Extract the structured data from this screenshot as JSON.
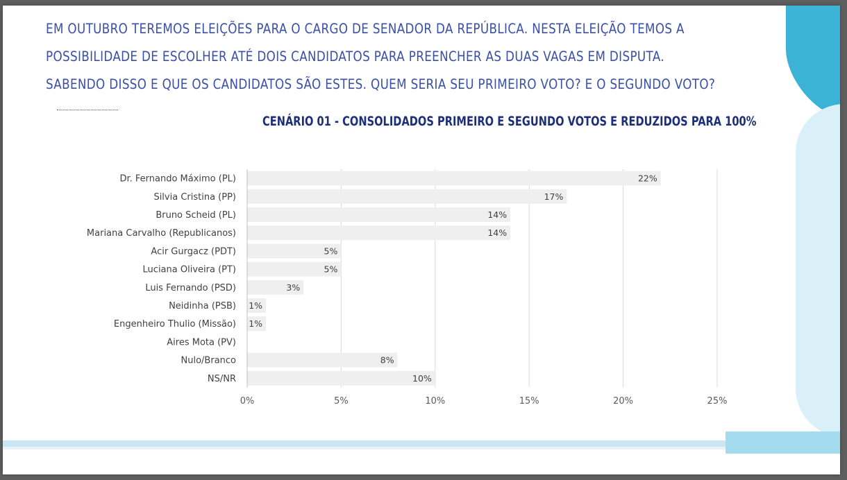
{
  "intro": {
    "line1": "EM OUTUBRO TEREMOS ELEIÇÕES PARA O CARGO DE SENADOR DA REPÚBLICA. NESTA ELEIÇÃO TEMOS A",
    "line2": "POSSIBILIDADE DE ESCOLHER ATÉ DOIS CANDIDATOS PARA PREENCHER AS DUAS VAGAS EM DISPUTA.",
    "line3": "SABENDO DISSO E QUE OS CANDIDATOS SÃO ESTES. QUEM SERIA SEU PRIMEIRO VOTO? E O SEGUNDO VOTO?"
  },
  "colors": {
    "accent_dark": "#3ab3d6",
    "accent_light": "#d9f0f8",
    "text_blue": "#3a4fa8",
    "title_blue": "#1d2f7a",
    "bar": "#efefef",
    "grid": "#d9d9d9"
  },
  "chart_data": {
    "type": "bar",
    "orientation": "horizontal",
    "title": "CENÁRIO 01 - CONSOLIDADOS PRIMEIRO E SEGUNDO VOTOS E REDUZIDOS PARA 100%",
    "categories": [
      "Dr. Fernando Máximo (PL)",
      "Silvia Cristina (PP)",
      "Bruno Scheid (PL)",
      "Mariana Carvalho (Republicanos)",
      "Acir Gurgacz (PDT)",
      "Luciana Oliveira (PT)",
      "Luis Fernando (PSD)",
      "Neidinha (PSB)",
      "Engenheiro Thulio (Missão)",
      "Aires Mota (PV)",
      "Nulo/Branco",
      "NS/NR"
    ],
    "values": [
      22,
      17,
      14,
      14,
      5,
      5,
      3,
      1,
      1,
      0,
      8,
      10
    ],
    "data_labels": [
      "22%",
      "17%",
      "14%",
      "14%",
      "5%",
      "5%",
      "3%",
      "1%",
      "1%",
      "",
      "8%",
      "10%"
    ],
    "xlim": [
      0,
      25
    ],
    "xticks": [
      0,
      5,
      10,
      15,
      20,
      25
    ],
    "xtick_labels": [
      "0%",
      "5%",
      "10%",
      "15%",
      "20%",
      "25%"
    ],
    "grid": "vertical",
    "legend": "none"
  }
}
